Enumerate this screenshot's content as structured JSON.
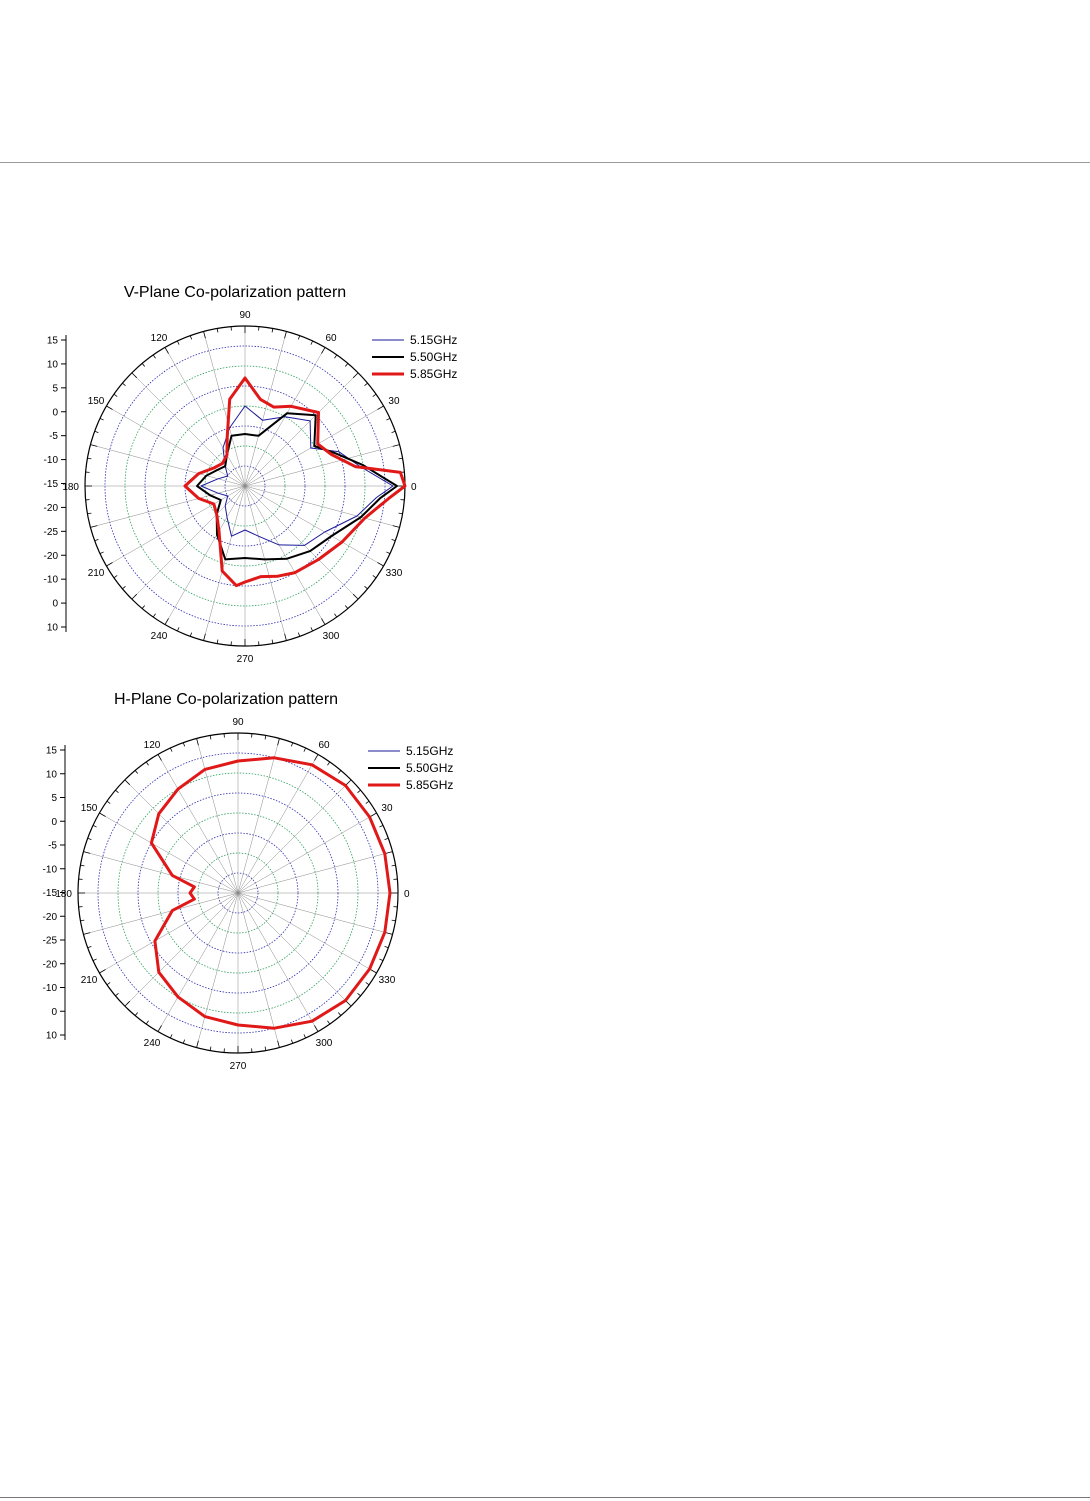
{
  "chart_data": [
    {
      "type": "polar",
      "title": "V-Plane Co-polarization pattern",
      "radial_ticks": [
        "15",
        "10",
        "5",
        "0",
        "-5",
        "-10",
        "-15",
        "-20",
        "-25",
        "-20",
        "-10",
        "0",
        "10"
      ],
      "angle_labels": [
        "0",
        "30",
        "60",
        "90",
        "120",
        "150",
        "180",
        "210",
        "240",
        "270",
        "300",
        "330"
      ],
      "rlim": [
        -25,
        15
      ],
      "grid": true,
      "legend_position": "top-right",
      "series": [
        {
          "name": "5.15GHz",
          "color": "#1a1a9a",
          "width": 1,
          "points": [
            [
              0,
              12
            ],
            [
              10,
              4
            ],
            [
              20,
              0
            ],
            [
              30,
              -6
            ],
            [
              45,
              -2
            ],
            [
              60,
              -5
            ],
            [
              75,
              -8
            ],
            [
              90,
              -5
            ],
            [
              105,
              -10
            ],
            [
              120,
              -14
            ],
            [
              135,
              -18
            ],
            [
              150,
              -20
            ],
            [
              165,
              -18
            ],
            [
              180,
              -14
            ],
            [
              195,
              -18
            ],
            [
              210,
              -20
            ],
            [
              225,
              -18
            ],
            [
              240,
              -16
            ],
            [
              255,
              -12
            ],
            [
              270,
              -14
            ],
            [
              285,
              -12
            ],
            [
              300,
              -8
            ],
            [
              315,
              -4
            ],
            [
              330,
              -2
            ],
            [
              345,
              4
            ],
            [
              355,
              8
            ]
          ]
        },
        {
          "name": "5.50GHz",
          "color": "#000000",
          "width": 2,
          "points": [
            [
              0,
              13
            ],
            [
              10,
              5
            ],
            [
              20,
              -1
            ],
            [
              30,
              -5
            ],
            [
              45,
              0
            ],
            [
              60,
              -4
            ],
            [
              75,
              -12
            ],
            [
              90,
              -12
            ],
            [
              105,
              -12
            ],
            [
              120,
              -16
            ],
            [
              135,
              -18
            ],
            [
              150,
              -17
            ],
            [
              165,
              -15
            ],
            [
              180,
              -13
            ],
            [
              195,
              -16
            ],
            [
              210,
              -18
            ],
            [
              225,
              -15
            ],
            [
              240,
              -11
            ],
            [
              255,
              -6
            ],
            [
              270,
              -7
            ],
            [
              285,
              -6
            ],
            [
              300,
              -4
            ],
            [
              315,
              -2
            ],
            [
              330,
              0
            ],
            [
              345,
              5
            ],
            [
              355,
              9
            ]
          ]
        },
        {
          "name": "5.85GHz",
          "color": "#e01818",
          "width": 3,
          "points": [
            [
              0,
              15
            ],
            [
              5,
              14
            ],
            [
              10,
              3
            ],
            [
              20,
              -2
            ],
            [
              30,
              -4
            ],
            [
              45,
              1
            ],
            [
              60,
              -2
            ],
            [
              70,
              -4
            ],
            [
              80,
              -3
            ],
            [
              90,
              2
            ],
            [
              100,
              -3
            ],
            [
              110,
              -12
            ],
            [
              120,
              -16
            ],
            [
              135,
              -17
            ],
            [
              150,
              -16
            ],
            [
              165,
              -13
            ],
            [
              180,
              -10
            ],
            [
              195,
              -13
            ],
            [
              210,
              -16
            ],
            [
              225,
              -15
            ],
            [
              240,
              -12
            ],
            [
              255,
              -3
            ],
            [
              265,
              0
            ],
            [
              270,
              -1
            ],
            [
              280,
              -2
            ],
            [
              290,
              -1
            ],
            [
              300,
              0
            ],
            [
              315,
              1
            ],
            [
              330,
              3
            ],
            [
              345,
              6
            ],
            [
              355,
              11
            ]
          ]
        }
      ]
    },
    {
      "type": "polar",
      "title": "H-Plane Co-polarization pattern",
      "radial_ticks": [
        "15",
        "10",
        "5",
        "0",
        "-5",
        "-10",
        "-15",
        "-20",
        "-25",
        "-20",
        "-10",
        "0",
        "10"
      ],
      "angle_labels": [
        "0",
        "30",
        "60",
        "90",
        "120",
        "150",
        "180",
        "210",
        "240",
        "270",
        "300",
        "330"
      ],
      "rlim": [
        -25,
        15
      ],
      "grid": true,
      "legend_position": "top-right",
      "series": [
        {
          "name": "5.15GHz",
          "color": "#1a1a9a",
          "width": 1,
          "points": [
            [
              0,
              13
            ],
            [
              15,
              13
            ],
            [
              30,
              13
            ],
            [
              45,
              13
            ],
            [
              60,
              12
            ],
            [
              75,
              10
            ],
            [
              90,
              8
            ],
            [
              105,
              7
            ],
            [
              120,
              5
            ],
            [
              135,
              3
            ],
            [
              150,
              0
            ],
            [
              165,
              -8
            ],
            [
              172,
              -14
            ],
            [
              180,
              -13
            ],
            [
              188,
              -14
            ],
            [
              195,
              -8
            ],
            [
              210,
              -1
            ],
            [
              225,
              3
            ],
            [
              240,
              5
            ],
            [
              255,
              7
            ],
            [
              270,
              8
            ],
            [
              285,
              10
            ],
            [
              300,
              12
            ],
            [
              315,
              13
            ],
            [
              330,
              13
            ],
            [
              345,
              13
            ]
          ]
        },
        {
          "name": "5.50GHz",
          "color": "#000000",
          "width": 2,
          "points": [
            [
              0,
              13
            ],
            [
              15,
              13
            ],
            [
              30,
              13
            ],
            [
              45,
              13
            ],
            [
              60,
              12
            ],
            [
              75,
              10
            ],
            [
              90,
              8
            ],
            [
              105,
              7
            ],
            [
              120,
              5
            ],
            [
              135,
              3
            ],
            [
              150,
              0
            ],
            [
              165,
              -8
            ],
            [
              172,
              -14
            ],
            [
              180,
              -13
            ],
            [
              188,
              -14
            ],
            [
              195,
              -8
            ],
            [
              210,
              -1
            ],
            [
              225,
              3
            ],
            [
              240,
              5
            ],
            [
              255,
              7
            ],
            [
              270,
              8
            ],
            [
              285,
              10
            ],
            [
              300,
              12
            ],
            [
              315,
              13
            ],
            [
              330,
              13
            ],
            [
              345,
              13
            ]
          ]
        },
        {
          "name": "5.85GHz",
          "color": "#e01818",
          "width": 3,
          "points": [
            [
              0,
              13
            ],
            [
              15,
              13
            ],
            [
              30,
              13
            ],
            [
              45,
              13
            ],
            [
              60,
              12
            ],
            [
              75,
              10
            ],
            [
              90,
              8
            ],
            [
              105,
              7
            ],
            [
              120,
              5
            ],
            [
              135,
              3
            ],
            [
              150,
              0
            ],
            [
              165,
              -8
            ],
            [
              172,
              -14
            ],
            [
              180,
              -13
            ],
            [
              188,
              -14
            ],
            [
              195,
              -8
            ],
            [
              210,
              -1
            ],
            [
              225,
              3
            ],
            [
              240,
              5
            ],
            [
              255,
              7
            ],
            [
              270,
              8
            ],
            [
              285,
              10
            ],
            [
              300,
              12
            ],
            [
              315,
              13
            ],
            [
              330,
              13
            ],
            [
              345,
              13
            ]
          ]
        }
      ]
    }
  ]
}
